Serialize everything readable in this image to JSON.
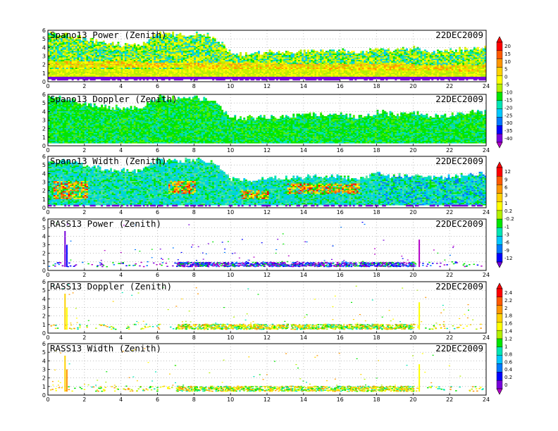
{
  "chart_data": [
    {
      "type": "heatmap",
      "title": "Spano13 Power (Zenith)",
      "date": "22DEC2009",
      "xlim": [
        0,
        24
      ],
      "ylim": [
        0,
        6
      ],
      "x_ticks": [
        "0",
        "2",
        "4",
        "6",
        "8",
        "10",
        "12",
        "14",
        "16",
        "18",
        "20",
        "22",
        "24"
      ],
      "y_ticks": [
        "0",
        "1",
        "2",
        "3",
        "4",
        "5",
        "6"
      ],
      "grid": true,
      "variable": "power",
      "colorbar": "power",
      "field_description": "continuous echo up to about 3.5-5.5 km, strongest band near 2 km",
      "top_height": [
        [
          0,
          5.5
        ],
        [
          1,
          5.4
        ],
        [
          2,
          4.9
        ],
        [
          3,
          4.5
        ],
        [
          4,
          4.3
        ],
        [
          5,
          4.3
        ],
        [
          6,
          5.6
        ],
        [
          7,
          5.4
        ],
        [
          8,
          5.5
        ],
        [
          9,
          5.2
        ],
        [
          10,
          3.3
        ],
        [
          11,
          3.2
        ],
        [
          12,
          3.3
        ],
        [
          13,
          3.4
        ],
        [
          14,
          3.5
        ],
        [
          15,
          3.6
        ],
        [
          16,
          3.6
        ],
        [
          17,
          3.3
        ],
        [
          18,
          3.9
        ],
        [
          19,
          3.6
        ],
        [
          20,
          3.8
        ],
        [
          21,
          3.4
        ],
        [
          22,
          3.5
        ],
        [
          23,
          3.8
        ],
        [
          24,
          3.9
        ]
      ]
    },
    {
      "type": "heatmap",
      "title": "Spano13 Doppler (Zenith)",
      "date": "22DEC2009",
      "xlim": [
        0,
        24
      ],
      "ylim": [
        0,
        6
      ],
      "x_ticks": [
        "0",
        "2",
        "4",
        "6",
        "8",
        "10",
        "12",
        "14",
        "16",
        "18",
        "20",
        "22",
        "24"
      ],
      "y_ticks": [
        "0",
        "1",
        "2",
        "3",
        "4",
        "5",
        "6"
      ],
      "grid": true,
      "variable": "doppler",
      "colorbar": null,
      "field_description": "mostly green values (about 0 to -0.2) with scattered cyan",
      "top_height": [
        [
          0,
          5.5
        ],
        [
          1,
          5.4
        ],
        [
          2,
          4.9
        ],
        [
          3,
          4.5
        ],
        [
          4,
          4.3
        ],
        [
          5,
          4.3
        ],
        [
          6,
          5.6
        ],
        [
          7,
          5.4
        ],
        [
          8,
          5.5
        ],
        [
          9,
          5.2
        ],
        [
          10,
          3.3
        ],
        [
          11,
          3.2
        ],
        [
          12,
          3.3
        ],
        [
          13,
          3.4
        ],
        [
          14,
          3.5
        ],
        [
          15,
          3.6
        ],
        [
          16,
          3.6
        ],
        [
          17,
          3.3
        ],
        [
          18,
          3.9
        ],
        [
          19,
          3.6
        ],
        [
          20,
          3.8
        ],
        [
          21,
          3.4
        ],
        [
          22,
          3.5
        ],
        [
          23,
          3.8
        ],
        [
          24,
          3.9
        ]
      ]
    },
    {
      "type": "heatmap",
      "title": "Spano13 Width (Zenith)",
      "date": "22DEC2009",
      "xlim": [
        0,
        24
      ],
      "ylim": [
        0,
        6
      ],
      "x_ticks": [
        "0",
        "2",
        "4",
        "6",
        "8",
        "10",
        "12",
        "14",
        "16",
        "18",
        "20",
        "22",
        "24"
      ],
      "y_ticks": [
        "0",
        "1",
        "2",
        "3",
        "4",
        "5",
        "6"
      ],
      "grid": true,
      "variable": "width",
      "colorbar": "doppler",
      "field_description": "cyan/green background with red and yellow patches below 3 km near 1-2 h and 13-17 h",
      "hot_regions": [
        [
          0.3,
          2.2,
          1.0,
          3.0
        ],
        [
          13.0,
          17.0,
          1.5,
          2.8
        ],
        [
          6.5,
          8.0,
          1.5,
          3.0
        ],
        [
          10.5,
          12.0,
          1.0,
          2.0
        ]
      ],
      "top_height": [
        [
          0,
          5.5
        ],
        [
          1,
          5.4
        ],
        [
          2,
          4.9
        ],
        [
          3,
          4.5
        ],
        [
          4,
          4.3
        ],
        [
          5,
          4.3
        ],
        [
          6,
          5.6
        ],
        [
          7,
          5.4
        ],
        [
          8,
          5.5
        ],
        [
          9,
          5.2
        ],
        [
          10,
          3.3
        ],
        [
          11,
          3.2
        ],
        [
          12,
          3.3
        ],
        [
          13,
          3.4
        ],
        [
          14,
          3.5
        ],
        [
          15,
          3.6
        ],
        [
          16,
          3.6
        ],
        [
          17,
          3.3
        ],
        [
          18,
          3.9
        ],
        [
          19,
          3.6
        ],
        [
          20,
          3.8
        ],
        [
          21,
          3.4
        ],
        [
          22,
          3.5
        ],
        [
          23,
          3.8
        ],
        [
          24,
          3.9
        ]
      ]
    },
    {
      "type": "scatter",
      "title": "RASS13 Power (Zenith)",
      "date": "22DEC2009",
      "xlim": [
        0,
        24
      ],
      "ylim": [
        0,
        6
      ],
      "x_ticks": [
        "0",
        "2",
        "4",
        "6",
        "8",
        "10",
        "12",
        "14",
        "16",
        "18",
        "20",
        "22",
        "24"
      ],
      "y_ticks": [
        "0",
        "1",
        "2",
        "3",
        "4",
        "5",
        "6"
      ],
      "grid": true,
      "variable": "rass_power",
      "colorbar": "width",
      "field_description": "band of points near 0.6-1.0 km, denser between 7 and 20 h, mostly purple/green",
      "dense_band": {
        "y_low": 0.5,
        "y_high": 1.0,
        "x_start": 7,
        "x_end": 20
      },
      "spikes": [
        [
          0.9,
          0.4,
          4.6
        ],
        [
          1.0,
          0.4,
          3.0
        ],
        [
          20.3,
          0.4,
          3.6
        ]
      ]
    },
    {
      "type": "scatter",
      "title": "RASS13 Doppler (Zenith)",
      "date": "22DEC2009",
      "xlim": [
        0,
        24
      ],
      "ylim": [
        0,
        6
      ],
      "x_ticks": [
        "0",
        "2",
        "4",
        "6",
        "8",
        "10",
        "12",
        "14",
        "16",
        "18",
        "20",
        "22",
        "24"
      ],
      "y_ticks": [
        "0",
        "1",
        "2",
        "3",
        "4",
        "5",
        "6"
      ],
      "grid": true,
      "variable": "rass_doppler",
      "colorbar": "rass",
      "field_description": "band of points near 0.6-1.2 km, green/yellow with some orange",
      "dense_band": {
        "y_low": 0.5,
        "y_high": 1.1,
        "x_start": 7,
        "x_end": 20
      },
      "spikes": [
        [
          0.9,
          0.4,
          4.6
        ],
        [
          1.0,
          0.4,
          3.0
        ],
        [
          20.3,
          0.4,
          3.6
        ]
      ]
    },
    {
      "type": "scatter",
      "title": "RASS13 Width (Zenith)",
      "date": "22DEC2009",
      "xlim": [
        0,
        24
      ],
      "ylim": [
        0,
        6
      ],
      "x_ticks": [
        "0",
        "2",
        "4",
        "6",
        "8",
        "10",
        "12",
        "14",
        "16",
        "18",
        "20",
        "22",
        "24"
      ],
      "y_ticks": [
        "0",
        "1",
        "2",
        "3",
        "4",
        "5",
        "6"
      ],
      "grid": true,
      "variable": "rass_width",
      "colorbar": null,
      "field_description": "band of points near 0.6-1.2 km, green with yellow/orange",
      "dense_band": {
        "y_low": 0.5,
        "y_high": 1.1,
        "x_start": 7,
        "x_end": 20
      },
      "spikes": [
        [
          0.9,
          0.4,
          4.6
        ],
        [
          1.0,
          0.4,
          3.0
        ],
        [
          20.3,
          0.4,
          3.6
        ]
      ]
    }
  ],
  "colorbars": {
    "power": {
      "labels": [
        "20",
        "15",
        "10",
        "5",
        "0",
        "-5",
        "-10",
        "-15",
        "-20",
        "-25",
        "-30",
        "-35",
        "-40"
      ],
      "colors": [
        "#ff0000",
        "#ff5a00",
        "#ff9600",
        "#ffd200",
        "#ffff00",
        "#b4f000",
        "#00e600",
        "#00e6b4",
        "#00c8ff",
        "#0078ff",
        "#0000ff",
        "#7800dc",
        "#b400c8"
      ]
    },
    "width": {
      "labels": [
        "12",
        "9",
        "6",
        "3",
        "1",
        "0.2",
        "-0.2",
        "-1",
        "-3",
        "-6",
        "-9",
        "-12"
      ],
      "colors": [
        "#ff0000",
        "#ff5a00",
        "#ff9600",
        "#ffd200",
        "#ffff00",
        "#b4f000",
        "#00e600",
        "#00e6b4",
        "#00c8ff",
        "#0078ff",
        "#0000ff",
        "#7800dc"
      ]
    },
    "rass": {
      "labels": [
        "2.4",
        "2.2",
        "2",
        "1.8",
        "1.6",
        "1.4",
        "1.2",
        "1",
        "0.8",
        "0.6",
        "0.4",
        "0.2",
        "0"
      ],
      "colors": [
        "#ff0000",
        "#ff5a00",
        "#ff9600",
        "#ffd200",
        "#ffff00",
        "#b4f000",
        "#00e600",
        "#00e6b4",
        "#00c8ff",
        "#0078ff",
        "#0000ff",
        "#7800dc",
        "#b400c8"
      ]
    }
  }
}
